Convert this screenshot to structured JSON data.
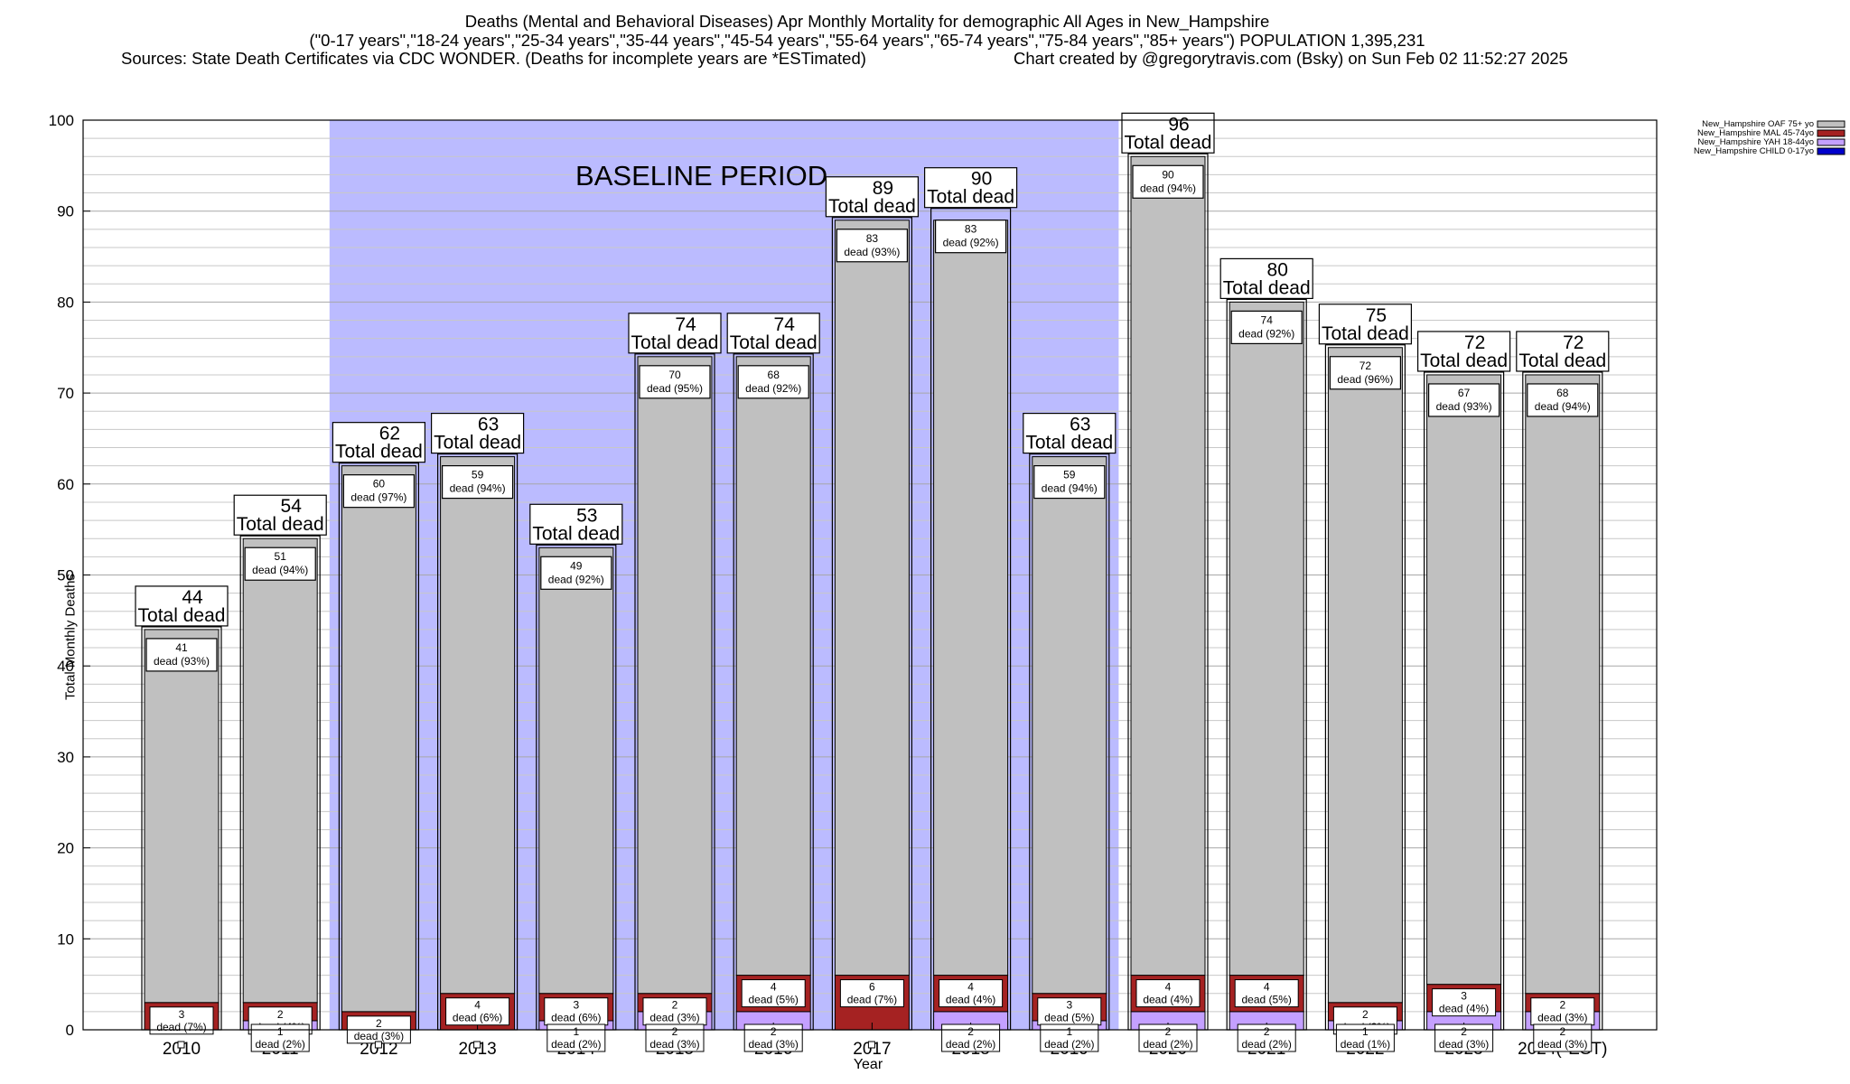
{
  "header": {
    "line1": "Deaths (Mental and Behavioral Diseases) Apr Monthly Mortality for demographic All Ages in New_Hampshire",
    "line2": "(\"0-17 years\",\"18-24 years\",\"25-34 years\",\"35-44 years\",\"45-54 years\",\"55-64 years\",\"65-74 years\",\"75-84 years\",\"85+ years\") POPULATION 1,395,231",
    "sources": "Sources: State Death Certificates via CDC WONDER. (Deaths for incomplete years are *ESTimated)",
    "credit": "Chart created by @gregorytravis.com (Bsky) on Sun Feb 02 11:52:27 2025"
  },
  "chart_data": {
    "type": "bar",
    "stacked": true,
    "xlabel": "Year",
    "ylabel": "Total Monthly Deaths",
    "ylim": [
      0,
      100
    ],
    "yticks": [
      0,
      10,
      20,
      30,
      40,
      50,
      60,
      70,
      80,
      90,
      100
    ],
    "grid": true,
    "legend_position": "top-right",
    "categories": [
      "2010",
      "2011",
      "2012",
      "2013",
      "2014",
      "2015",
      "2016",
      "2017",
      "2018",
      "2019",
      "2020",
      "2021",
      "2022",
      "2023",
      "2024(*EST)"
    ],
    "totals": [
      44,
      54,
      62,
      63,
      53,
      74,
      74,
      89,
      90,
      63,
      96,
      80,
      75,
      72,
      72
    ],
    "total_label_suffix": "Total dead",
    "series": [
      {
        "name": "New_Hampshire CHILD 0-17yo",
        "color": "#0000cc",
        "values": [
          0,
          0,
          0,
          0,
          0,
          0,
          0,
          0,
          1,
          0,
          0,
          0,
          0,
          0,
          0
        ]
      },
      {
        "name": "New_Hampshire YAH 18-44yo",
        "color": "#c4a0ff",
        "values": [
          0,
          1,
          0,
          0,
          1,
          2,
          2,
          0,
          2,
          1,
          2,
          2,
          1,
          2,
          2
        ]
      },
      {
        "name": "New_Hampshire MAL 45-74yo",
        "color": "#a52222",
        "values": [
          3,
          2,
          2,
          4,
          3,
          2,
          4,
          6,
          4,
          3,
          4,
          4,
          2,
          3,
          2
        ]
      },
      {
        "name": "New_Hampshire OAF 75+ yo",
        "color": "#c0c0c0",
        "values": [
          41,
          51,
          60,
          59,
          49,
          70,
          68,
          83,
          83,
          59,
          90,
          74,
          72,
          67,
          68
        ]
      }
    ],
    "segment_labels": {
      "oaf": [
        {
          "n": "41",
          "pct": "dead (93%)"
        },
        {
          "n": "51",
          "pct": "dead (94%)"
        },
        {
          "n": "60",
          "pct": "dead (97%)"
        },
        {
          "n": "59",
          "pct": "dead (94%)"
        },
        {
          "n": "49",
          "pct": "dead (92%)"
        },
        {
          "n": "70",
          "pct": "dead (95%)"
        },
        {
          "n": "68",
          "pct": "dead (92%)"
        },
        {
          "n": "83",
          "pct": "dead (93%)"
        },
        {
          "n": "83",
          "pct": "dead (92%)"
        },
        {
          "n": "59",
          "pct": "dead (94%)"
        },
        {
          "n": "90",
          "pct": "dead (94%)"
        },
        {
          "n": "74",
          "pct": "dead (92%)"
        },
        {
          "n": "72",
          "pct": "dead (96%)"
        },
        {
          "n": "67",
          "pct": "dead (93%)"
        },
        {
          "n": "68",
          "pct": "dead (94%)"
        }
      ],
      "mal": [
        {
          "n": "3",
          "pct": "dead (7%)"
        },
        {
          "n": "2",
          "pct": "dead (4%)"
        },
        {
          "n": "2",
          "pct": "dead (3%)"
        },
        {
          "n": "4",
          "pct": "dead (6%)"
        },
        {
          "n": "3",
          "pct": "dead (6%)"
        },
        {
          "n": "2",
          "pct": "dead (3%)"
        },
        {
          "n": "4",
          "pct": "dead (5%)"
        },
        {
          "n": "6",
          "pct": "dead (7%)"
        },
        {
          "n": "4",
          "pct": "dead (4%)"
        },
        {
          "n": "3",
          "pct": "dead (5%)"
        },
        {
          "n": "4",
          "pct": "dead (4%)"
        },
        {
          "n": "4",
          "pct": "dead (5%)"
        },
        {
          "n": "2",
          "pct": "dead (3%)"
        },
        {
          "n": "3",
          "pct": "dead (4%)"
        },
        {
          "n": "2",
          "pct": "dead (3%)"
        }
      ],
      "yah": [
        null,
        {
          "n": "1",
          "pct": "dead (2%)"
        },
        null,
        null,
        {
          "n": "1",
          "pct": "dead (2%)"
        },
        {
          "n": "2",
          "pct": "dead (3%)"
        },
        {
          "n": "2",
          "pct": "dead (3%)"
        },
        null,
        {
          "n": "2",
          "pct": "dead (2%)"
        },
        {
          "n": "1",
          "pct": "dead (2%)"
        },
        {
          "n": "2",
          "pct": "dead (2%)"
        },
        {
          "n": "2",
          "pct": "dead (2%)"
        },
        {
          "n": "1",
          "pct": "dead (1%)"
        },
        {
          "n": "2",
          "pct": "dead (3%)"
        },
        {
          "n": "2",
          "pct": "dead (3%)"
        }
      ]
    },
    "annotations": [
      {
        "text": "BASELINE PERIOD",
        "from": "2012",
        "to": "2019",
        "color": "#bbbbff"
      }
    ]
  }
}
